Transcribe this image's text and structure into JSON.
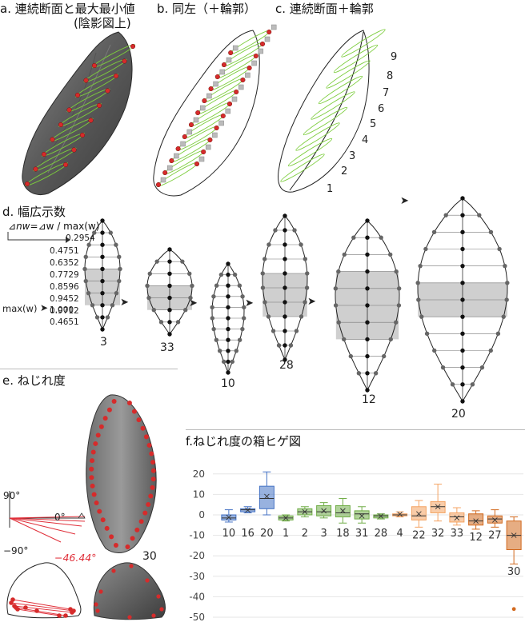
{
  "panels": {
    "a": {
      "title": "a. 連続断面と最大最小値",
      "subtitle": "(陰影図上)"
    },
    "b": {
      "title": "b. 同左（＋輪郭）"
    },
    "c": {
      "title": "c. 連続断面＋輪郭",
      "section_numbers": [
        "1",
        "2",
        "3",
        "4",
        "5",
        "6",
        "7",
        "8",
        "9"
      ]
    },
    "d": {
      "title": "d. 幅広示数",
      "formula_delta": "⊿",
      "formula_nw": "nw",
      "formula_rest": "=⊿w / max(w)",
      "values": [
        "0.2954",
        "0.4751",
        "0.6352",
        "0.7729",
        "0.8596",
        "0.9452",
        "0.9712",
        "1.000",
        "0.4651"
      ],
      "max_label": "max(w)",
      "arrow": "➤",
      "shape_labels": [
        "3",
        "33",
        "10",
        "28",
        "12",
        "20"
      ]
    },
    "e": {
      "title": "e. ねじれ度",
      "angle_top": "90°",
      "angle_zero": "0°",
      "angle_bottom": "−90°",
      "angle_value": "−46.44°",
      "specimen_label": "30"
    },
    "f": {
      "title": "f.ねじれ度の箱ヒゲ図"
    }
  },
  "chart_data": {
    "type": "box",
    "title": "f.ねじれ度の箱ヒゲ図",
    "xlabel": "",
    "ylabel": "",
    "ylim": [
      -50,
      25
    ],
    "yticks": [
      20,
      10,
      0,
      -10,
      -20,
      -30,
      -40,
      -50
    ],
    "grid": true,
    "categories": [
      "10",
      "16",
      "20",
      "1",
      "2",
      "3",
      "18",
      "31",
      "28",
      "4",
      "22",
      "32",
      "33",
      "12",
      "27",
      "30"
    ],
    "colors": [
      "#4472c4",
      "#4472c4",
      "#4472c4",
      "#70ad47",
      "#70ad47",
      "#70ad47",
      "#70ad47",
      "#70ad47",
      "#70ad47",
      "#f4a261",
      "#f4a261",
      "#f4a261",
      "#f4a261",
      "#d2691e",
      "#d2691e",
      "#d2691e"
    ],
    "boxes": [
      {
        "label": "10",
        "min": -3.5,
        "q1": -2.5,
        "median": -1.5,
        "q3": 0,
        "max": 2.5,
        "mean": -1.2
      },
      {
        "label": "16",
        "min": 1,
        "q1": 1.5,
        "median": 2.5,
        "q3": 3,
        "max": 4,
        "mean": 2.3
      },
      {
        "label": "20",
        "min": 0,
        "q1": 3,
        "median": 8,
        "q3": 14,
        "max": 21,
        "mean": 9
      },
      {
        "label": "1",
        "min": -3,
        "q1": -2.5,
        "median": -1.5,
        "q3": -0.5,
        "max": 0,
        "mean": -1.5
      },
      {
        "label": "2",
        "min": -1,
        "q1": 0,
        "median": 1.5,
        "q3": 3,
        "max": 4,
        "mean": 1.5
      },
      {
        "label": "3",
        "min": -1.5,
        "q1": -0.5,
        "median": 1.5,
        "q3": 4.5,
        "max": 6,
        "mean": 2
      },
      {
        "label": "18",
        "min": -4,
        "q1": -1,
        "median": 1,
        "q3": 4.5,
        "max": 8,
        "mean": 2
      },
      {
        "label": "31",
        "min": -4,
        "q1": -2,
        "median": 0.5,
        "q3": 2,
        "max": 4,
        "mean": -0.5
      },
      {
        "label": "28",
        "min": -2,
        "q1": -1.5,
        "median": -0.5,
        "q3": 0,
        "max": 0.5,
        "mean": -0.6
      },
      {
        "label": "4",
        "min": -1,
        "q1": -0.5,
        "median": 0,
        "q3": 0.5,
        "max": 1.5,
        "mean": 0.3
      },
      {
        "label": "22",
        "min": -6,
        "q1": -2.5,
        "median": -0.5,
        "q3": 4,
        "max": 7,
        "mean": 0.5
      },
      {
        "label": "32",
        "min": -3,
        "q1": 1,
        "median": 4,
        "q3": 6.5,
        "max": 15,
        "mean": 4
      },
      {
        "label": "33",
        "min": -5,
        "q1": -3.5,
        "median": -1,
        "q3": 1,
        "max": 3.5,
        "mean": -1.5
      },
      {
        "label": "12",
        "min": -7,
        "q1": -5,
        "median": -3,
        "q3": 0.5,
        "max": 2,
        "mean": -3
      },
      {
        "label": "27",
        "min": -6,
        "q1": -4,
        "median": -2,
        "q3": -0.5,
        "max": 2.5,
        "mean": -2.5
      },
      {
        "label": "30",
        "min": -24,
        "q1": -17,
        "median": -10,
        "q3": -3,
        "max": -1,
        "mean": -10,
        "outliers": [
          -46
        ]
      }
    ]
  }
}
